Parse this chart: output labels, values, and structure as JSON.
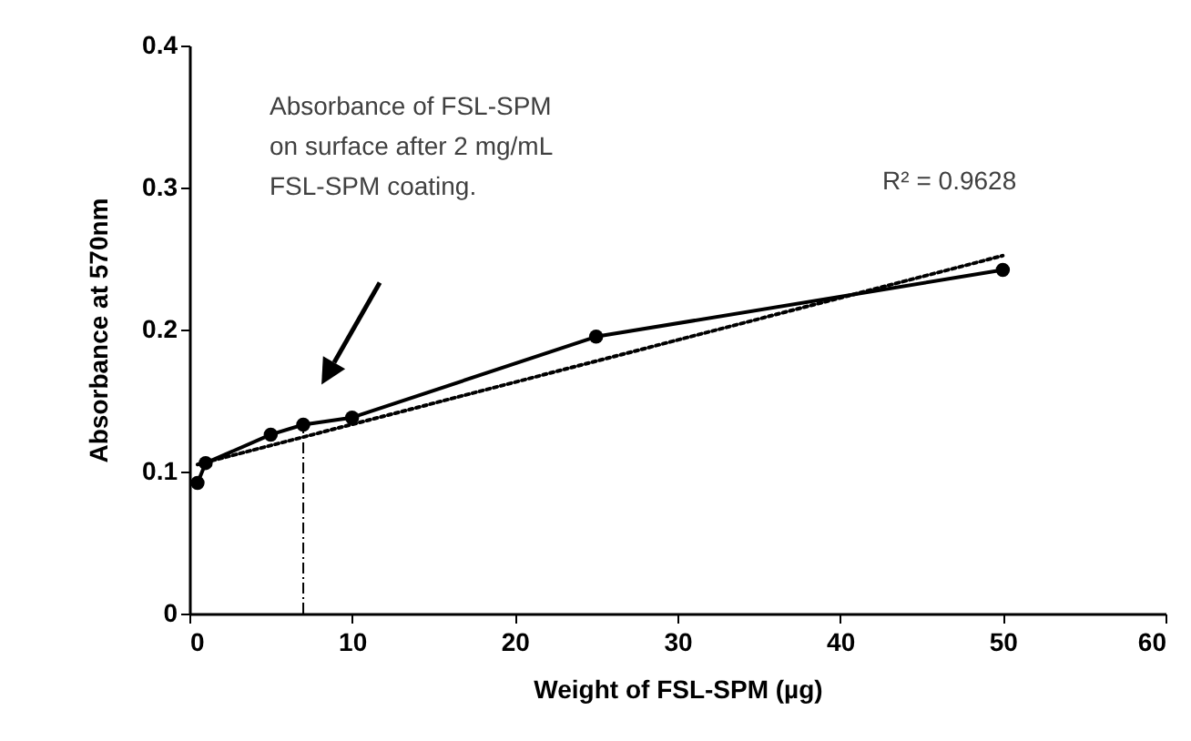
{
  "chart_data": {
    "type": "line",
    "xlabel": "Weight of FSL-SPM (µg)",
    "ylabel": "Absorbance  at  570nm",
    "x": [
      0.5,
      1,
      5,
      7,
      10,
      25,
      50
    ],
    "series": [
      {
        "color": "#000000",
        "marker": "circle",
        "line_style": "solid",
        "values": [
          0.092,
          0.106,
          0.126,
          0.133,
          0.138,
          0.195,
          0.242
        ]
      },
      {
        "color": "#000000",
        "marker": "none",
        "line_style": "dotted",
        "x": [
          0.5,
          50
        ],
        "values": [
          0.105,
          0.252
        ]
      }
    ],
    "xlim": [
      0,
      60
    ],
    "xticks": [
      0,
      10,
      20,
      30,
      40,
      50,
      60
    ],
    "ylim": [
      0,
      0.4
    ],
    "yticks": [
      0,
      0.1,
      0.2,
      0.3,
      0.4
    ],
    "grid": false,
    "ref_lines": [
      {
        "axis": "x",
        "value": 7
      }
    ],
    "annotations": [
      "Absorbance  of  FSL-SPM on surface after 2 mg/mL FSL-SPM coating.",
      "R² = 0.9628"
    ]
  }
}
